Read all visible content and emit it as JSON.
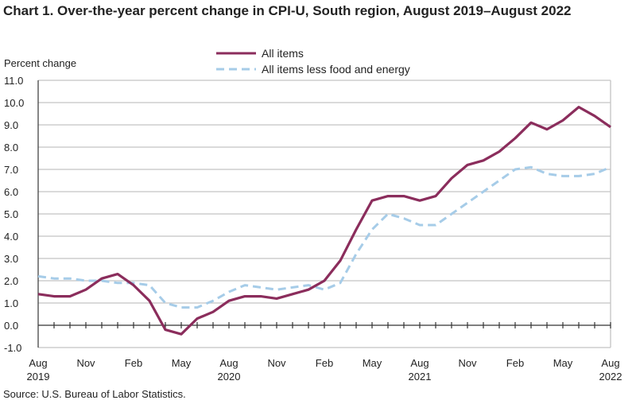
{
  "chart_data": {
    "type": "line",
    "title": "Chart 1. Over-the-year percent change in CPI-U, South region, August 2019–August 2022",
    "ylabel": "Percent change",
    "xlabel": "",
    "ylim": [
      -1.0,
      11.0
    ],
    "yticks": [
      "11.0",
      "10.0",
      "9.0",
      "8.0",
      "7.0",
      "6.0",
      "5.0",
      "4.0",
      "3.0",
      "2.0",
      "1.0",
      "0.0",
      "-1.0"
    ],
    "grid": true,
    "legend": "top-center",
    "x": [
      "Aug 2019",
      "Sep 2019",
      "Oct 2019",
      "Nov 2019",
      "Dec 2019",
      "Jan 2020",
      "Feb 2020",
      "Mar 2020",
      "Apr 2020",
      "May 2020",
      "Jun 2020",
      "Jul 2020",
      "Aug 2020",
      "Sep 2020",
      "Oct 2020",
      "Nov 2020",
      "Dec 2020",
      "Jan 2021",
      "Feb 2021",
      "Mar 2021",
      "Apr 2021",
      "May 2021",
      "Jun 2021",
      "Jul 2021",
      "Aug 2021",
      "Sep 2021",
      "Oct 2021",
      "Nov 2021",
      "Dec 2021",
      "Jan 2022",
      "Feb 2022",
      "Mar 2022",
      "Apr 2022",
      "May 2022",
      "Jun 2022",
      "Jul 2022",
      "Aug 2022"
    ],
    "xtick_labels": [
      {
        "month": "Aug",
        "year": "2019"
      },
      {
        "month": "Nov",
        "year": ""
      },
      {
        "month": "Feb",
        "year": ""
      },
      {
        "month": "May",
        "year": ""
      },
      {
        "month": "Aug",
        "year": "2020"
      },
      {
        "month": "Nov",
        "year": ""
      },
      {
        "month": "Feb",
        "year": ""
      },
      {
        "month": "May",
        "year": ""
      },
      {
        "month": "Aug",
        "year": "2021"
      },
      {
        "month": "Nov",
        "year": ""
      },
      {
        "month": "Feb",
        "year": ""
      },
      {
        "month": "May",
        "year": ""
      },
      {
        "month": "Aug",
        "year": "2022"
      }
    ],
    "series": [
      {
        "name": "All items",
        "color": "#8b2d5c",
        "style": "solid",
        "values": [
          1.4,
          1.3,
          1.3,
          1.6,
          2.1,
          2.3,
          1.8,
          1.1,
          -0.2,
          -0.4,
          0.3,
          0.6,
          1.1,
          1.3,
          1.3,
          1.2,
          1.4,
          1.6,
          2.0,
          2.9,
          4.3,
          5.6,
          5.8,
          5.8,
          5.6,
          5.8,
          6.6,
          7.2,
          7.4,
          7.8,
          8.4,
          9.1,
          8.8,
          9.2,
          9.8,
          9.4,
          8.9
        ]
      },
      {
        "name": "All items less food and energy",
        "color": "#a6cce8",
        "style": "dashed",
        "values": [
          2.2,
          2.1,
          2.1,
          2.0,
          2.0,
          1.9,
          1.9,
          1.8,
          1.0,
          0.8,
          0.8,
          1.1,
          1.5,
          1.8,
          1.7,
          1.6,
          1.7,
          1.8,
          1.6,
          1.9,
          3.2,
          4.3,
          5.0,
          4.8,
          4.5,
          4.5,
          5.0,
          5.5,
          6.0,
          6.5,
          7.0,
          7.1,
          6.8,
          6.7,
          6.7,
          6.8,
          7.1
        ]
      }
    ]
  },
  "source": "Source: U.S. Bureau of Labor Statistics."
}
